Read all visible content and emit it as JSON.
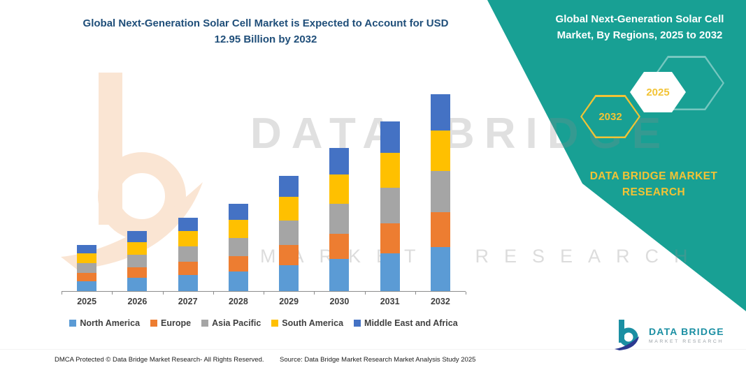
{
  "colors": {
    "panel_teal": "#18A094",
    "gold": "#F2C335",
    "title_blue": "#1F4E79",
    "axis_text": "#3F3F3F",
    "peach": "#F7CCA9",
    "logo_teal": "#1B8FA3",
    "logo_navy": "#2B3990"
  },
  "header": {
    "title_line1": "Global Next-Generation Solar Cell Market is Expected to Account for USD",
    "title_line2": "12.95 Billion by 2032"
  },
  "panel": {
    "title_line1": "Global Next-Generation Solar Cell",
    "title_line2": "Market, By Regions, 2025 to 2032",
    "hexagon_back_label": "2032",
    "hexagon_front_label": "2025",
    "brand_line1": "DATA BRIDGE MARKET",
    "brand_line2": "RESEARCH"
  },
  "watermark": {
    "line1": "DATA BRIDGE",
    "line2": "MARKET RESEARCH"
  },
  "chart_data": {
    "type": "bar",
    "stacked": true,
    "title": "Global Next-Generation Solar Cell Market, By Regions, 2025 to 2032",
    "unit": "USD Billion",
    "categories": [
      "2025",
      "2026",
      "2027",
      "2028",
      "2029",
      "2030",
      "2031",
      "2032"
    ],
    "series": [
      {
        "name": "North America",
        "color": "#5B9BD5",
        "values": [
          0.64,
          0.87,
          1.06,
          1.29,
          1.7,
          2.11,
          2.48,
          2.89
        ]
      },
      {
        "name": "Europe",
        "color": "#ED7D31",
        "values": [
          0.55,
          0.69,
          0.87,
          1.01,
          1.33,
          1.65,
          1.97,
          2.3
        ]
      },
      {
        "name": "Asia Pacific",
        "color": "#A5A5A5",
        "values": [
          0.64,
          0.83,
          1.01,
          1.19,
          1.61,
          1.97,
          2.34,
          2.71
        ]
      },
      {
        "name": "South America",
        "color": "#FFC000",
        "values": [
          0.64,
          0.83,
          1.01,
          1.19,
          1.56,
          1.93,
          2.3,
          2.66
        ]
      },
      {
        "name": "Middle East and Africa",
        "color": "#4472C4",
        "values": [
          0.55,
          0.73,
          0.87,
          1.06,
          1.38,
          1.74,
          2.07,
          2.39
        ]
      }
    ],
    "totals": [
      3.02,
      3.95,
      4.82,
      5.74,
      7.58,
      9.4,
      11.16,
      12.95
    ],
    "highlight_total_label": "USD 12.95 Billion by 2032",
    "ylim": [
      0,
      14
    ],
    "grid": false,
    "legend_position": "bottom"
  },
  "footer": {
    "left": "DMCA Protected © Data Bridge Market Research-  All Rights Reserved.",
    "source": "Source: Data Bridge Market Research  Market Analysis Study 2025"
  },
  "logo": {
    "line1": "DATA BRIDGE",
    "line2": "MARKET RESEARCH"
  }
}
